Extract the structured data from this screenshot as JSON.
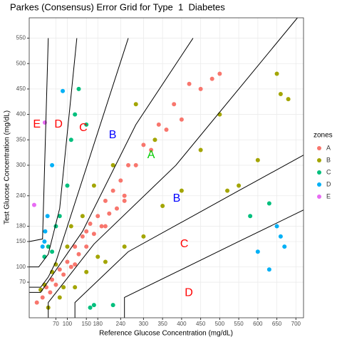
{
  "chart_data": {
    "type": "scatter",
    "title": "Parkes (Consensus) Error Grid for Type  1  Diabetes",
    "x_label": "Reference Glucose Concentration (mg/dL)",
    "y_label": "Test Glucose Concentration (mg/dL)",
    "legend_title": "zones",
    "xlim": [
      0,
      720
    ],
    "ylim": [
      0,
      590
    ],
    "xticks": [
      70,
      100,
      150,
      180,
      240,
      300,
      350,
      400,
      450,
      500,
      550,
      600,
      650,
      700
    ],
    "yticks": [
      70,
      100,
      150,
      180,
      240,
      300,
      350,
      400,
      450,
      500,
      550
    ],
    "grid": true,
    "series": [
      {
        "name": "A",
        "color": "#F8766D",
        "x": [
          20,
          35,
          45,
          55,
          60,
          70,
          80,
          90,
          100,
          110,
          120,
          130,
          140,
          150,
          160,
          170,
          180,
          190,
          200,
          210,
          220,
          230,
          240,
          250,
          260,
          280,
          300,
          320,
          340,
          360,
          380,
          400,
          420,
          450,
          480,
          500,
          120,
          150,
          200,
          250
        ],
        "y": [
          30,
          40,
          60,
          50,
          75,
          65,
          95,
          85,
          110,
          100,
          140,
          125,
          160,
          140,
          185,
          165,
          200,
          180,
          230,
          205,
          250,
          215,
          270,
          240,
          300,
          300,
          340,
          330,
          380,
          370,
          420,
          390,
          460,
          450,
          470,
          480,
          105,
          170,
          180,
          230
        ]
      },
      {
        "name": "B",
        "color": "#A3A500",
        "x": [
          30,
          50,
          60,
          80,
          100,
          120,
          140,
          150,
          170,
          200,
          220,
          250,
          280,
          300,
          350,
          400,
          450,
          500,
          550,
          600,
          650,
          680,
          40,
          70,
          90,
          110,
          180,
          330,
          520,
          660
        ],
        "y": [
          55,
          20,
          90,
          40,
          140,
          60,
          200,
          90,
          260,
          110,
          300,
          140,
          420,
          160,
          220,
          250,
          330,
          400,
          260,
          310,
          480,
          430,
          65,
          105,
          60,
          180,
          120,
          350,
          250,
          440
        ]
      },
      {
        "name": "C",
        "color": "#00BF7D",
        "x": [
          40,
          50,
          60,
          70,
          80,
          100,
          110,
          120,
          130,
          150,
          160,
          170,
          220,
          580,
          630
        ],
        "y": [
          120,
          140,
          130,
          180,
          200,
          260,
          350,
          400,
          450,
          380,
          20,
          25,
          25,
          200,
          225
        ]
      },
      {
        "name": "D",
        "color": "#00B0F6",
        "x": [
          35,
          40,
          42,
          48,
          60,
          88,
          600,
          630,
          650,
          660,
          670
        ],
        "y": [
          140,
          150,
          170,
          200,
          300,
          446,
          130,
          95,
          180,
          160,
          140
        ]
      },
      {
        "name": "E",
        "color": "#E76BF3",
        "x": [
          13,
          41
        ],
        "y": [
          222,
          384
        ]
      }
    ],
    "boundaries": [
      {
        "x": [
          0,
          30,
          140,
          280,
          430
        ],
        "y": [
          50,
          50,
          170,
          380,
          550
        ]
      },
      {
        "x": [
          50,
          50,
          170,
          385,
          550,
          704
        ],
        "y": [
          0,
          30,
          145,
          300,
          450,
          590
        ]
      },
      {
        "x": [
          0,
          30,
          50,
          70,
          260
        ],
        "y": [
          60,
          60,
          80,
          110,
          550
        ]
      },
      {
        "x": [
          120,
          120,
          260,
          550,
          720
        ],
        "y": [
          0,
          30,
          130,
          250,
          320
        ]
      },
      {
        "x": [
          0,
          25,
          50,
          80,
          125
        ],
        "y": [
          100,
          100,
          125,
          215,
          550
        ]
      },
      {
        "x": [
          250,
          250,
          550,
          720
        ],
        "y": [
          0,
          40,
          150,
          212
        ]
      },
      {
        "x": [
          0,
          35,
          50
        ],
        "y": [
          150,
          155,
          550
        ]
      }
    ],
    "zone_labels": [
      {
        "text": "E",
        "x": 20,
        "y": 380,
        "color": "#FF0000"
      },
      {
        "text": "D",
        "x": 77,
        "y": 380,
        "color": "#FF0000"
      },
      {
        "text": "C",
        "x": 142,
        "y": 373,
        "color": "#FF0000"
      },
      {
        "text": "B",
        "x": 219,
        "y": 359,
        "color": "#0000FF"
      },
      {
        "text": "A",
        "x": 320,
        "y": 320,
        "color": "#00CC00"
      },
      {
        "text": "B",
        "x": 387,
        "y": 234,
        "color": "#0000FF"
      },
      {
        "text": "C",
        "x": 407,
        "y": 145,
        "color": "#FF0000"
      },
      {
        "text": "D",
        "x": 419,
        "y": 49,
        "color": "#FF0000"
      }
    ]
  }
}
